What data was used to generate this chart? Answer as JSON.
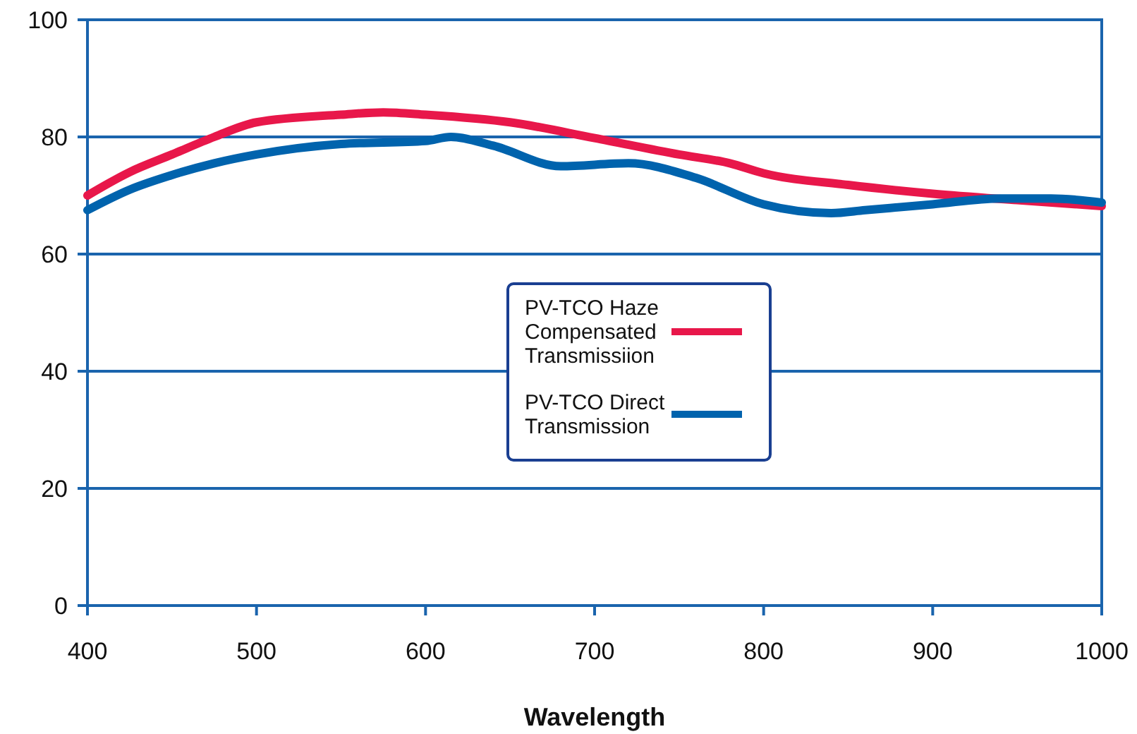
{
  "chart_data": {
    "type": "line",
    "xlabel": "Wavelength",
    "xlim": [
      400,
      1000
    ],
    "xticks": [
      400,
      500,
      600,
      700,
      800,
      900,
      1000
    ],
    "ylim": [
      0,
      100
    ],
    "yticks": [
      0,
      20,
      40,
      60,
      80,
      100
    ],
    "grid": "y",
    "legend": "center",
    "line_style": "solid",
    "marker": "none",
    "series": [
      {
        "name": "PV-TCO Haze Compensated Transmissiion",
        "color": "#e8174a",
        "x": [
          400,
          425,
          450,
          475,
          500,
          550,
          575,
          600,
          650,
          700,
          750,
          780,
          800,
          850,
          900,
          950,
          1000
        ],
        "values": [
          70,
          74,
          77,
          80,
          82.5,
          83.8,
          84.2,
          83.8,
          82.5,
          79.8,
          77,
          75.5,
          73.8,
          71.8,
          70.3,
          69.2,
          68.2
        ]
      },
      {
        "name": "PV-TCO Direct Transmission",
        "color": "#0063ad",
        "x": [
          400,
          425,
          450,
          475,
          500,
          550,
          600,
          615,
          640,
          680,
          720,
          760,
          800,
          840,
          860,
          900,
          940,
          970,
          1000
        ],
        "values": [
          67.5,
          71,
          73.5,
          75.5,
          77,
          78.8,
          79.3,
          80,
          78.5,
          75,
          75.5,
          73,
          68.5,
          67,
          67.5,
          68.5,
          69.5,
          69.5,
          68.8
        ]
      }
    ]
  }
}
